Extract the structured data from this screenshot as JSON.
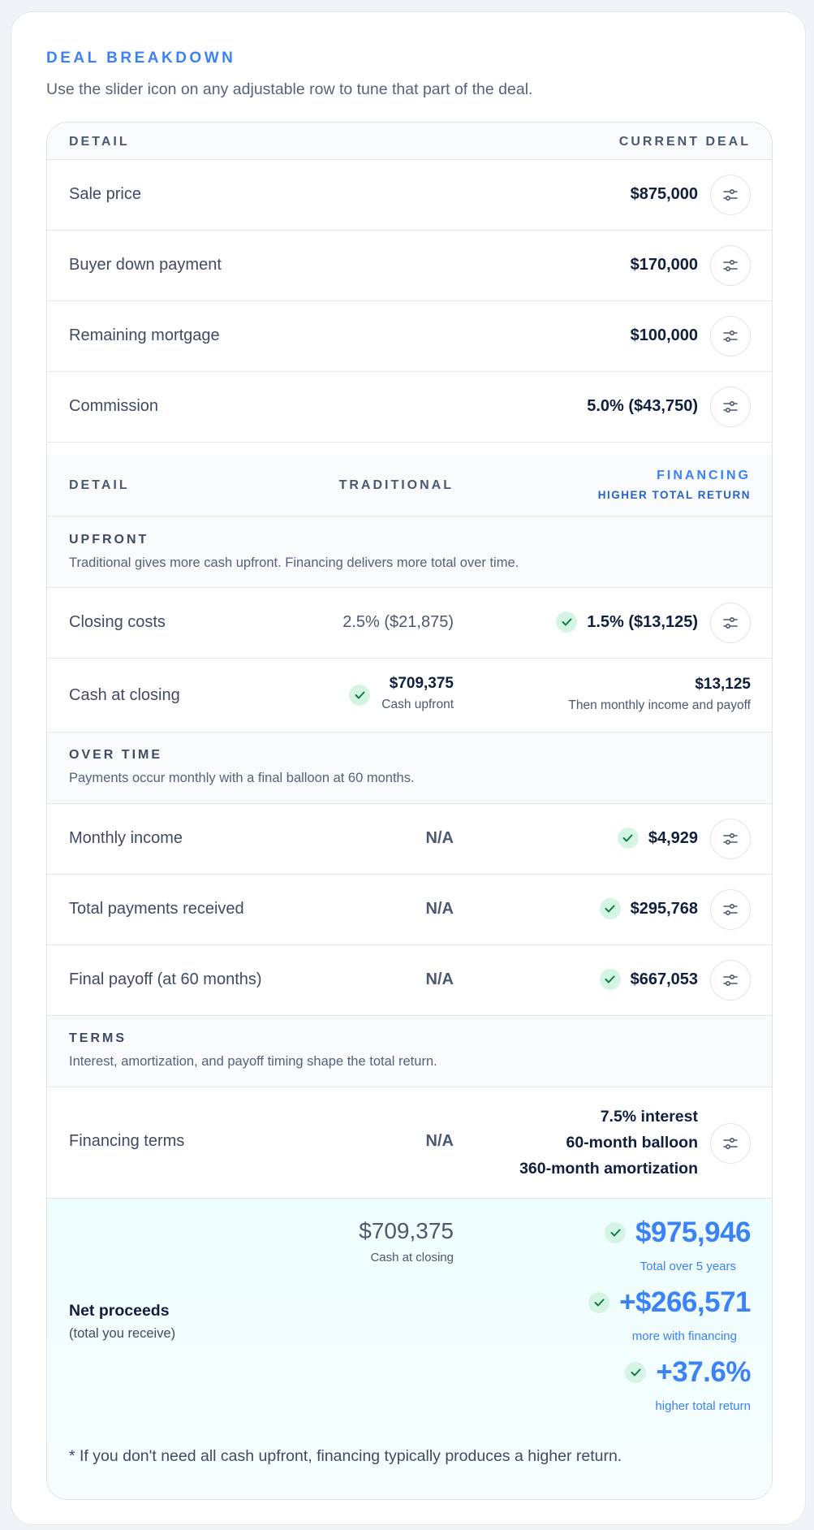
{
  "header": {
    "eyebrow": "DEAL BREAKDOWN",
    "subtitle": "Use the slider icon on any adjustable row to tune that part of the deal."
  },
  "current": {
    "col_detail": "DETAIL",
    "col_current": "CURRENT DEAL",
    "rows": [
      {
        "label": "Sale price",
        "value": "$875,000"
      },
      {
        "label": "Buyer down payment",
        "value": "$170,000"
      },
      {
        "label": "Remaining mortgage",
        "value": "$100,000"
      },
      {
        "label": "Commission",
        "value": "5.0% ($43,750)"
      }
    ]
  },
  "compare": {
    "col_detail": "DETAIL",
    "col_traditional": "TRADITIONAL",
    "col_financing": "FINANCING",
    "financing_badge": "HIGHER TOTAL RETURN"
  },
  "upfront": {
    "title": "UPFRONT",
    "desc": "Traditional gives more cash upfront. Financing delivers more total over time.",
    "closing_costs": {
      "label": "Closing costs",
      "traditional": "2.5% ($21,875)",
      "financing": "1.5% ($13,125)"
    },
    "cash_at_closing": {
      "label": "Cash at closing",
      "traditional": "$709,375",
      "traditional_sub": "Cash upfront",
      "financing": "$13,125",
      "financing_sub": "Then monthly income and payoff"
    }
  },
  "over_time": {
    "title": "OVER TIME",
    "desc": "Payments occur monthly with a final balloon at 60 months.",
    "rows": [
      {
        "label": "Monthly income",
        "traditional": "N/A",
        "financing": "$4,929"
      },
      {
        "label": "Total payments received",
        "traditional": "N/A",
        "financing": "$295,768"
      },
      {
        "label": "Final payoff (at 60 months)",
        "traditional": "N/A",
        "financing": "$667,053"
      }
    ]
  },
  "terms": {
    "title": "TERMS",
    "desc": "Interest, amortization, and payoff timing shape the total return.",
    "label": "Financing terms",
    "traditional": "N/A",
    "lines": [
      "7.5% interest",
      "60-month balloon",
      "360-month amortization"
    ]
  },
  "net": {
    "label": "Net proceeds",
    "sublabel": "(total you receive)",
    "traditional": "$709,375",
    "traditional_sub": "Cash at closing",
    "total": "$975,946",
    "total_sub": "Total over 5 years",
    "diff": "+$266,571",
    "diff_sub": "more with financing",
    "pct": "+37.6%",
    "pct_sub": "higher total return",
    "footnote": "* If you don't need all cash upfront, financing typically produces a higher return."
  },
  "icons": {
    "slider": "sliders-icon",
    "check": "check-icon"
  },
  "colors": {
    "accent": "#3b82f6",
    "check_bg": "#d4f5e4",
    "check_fg": "#0f7a45",
    "net_bg": "#eefdfd"
  }
}
